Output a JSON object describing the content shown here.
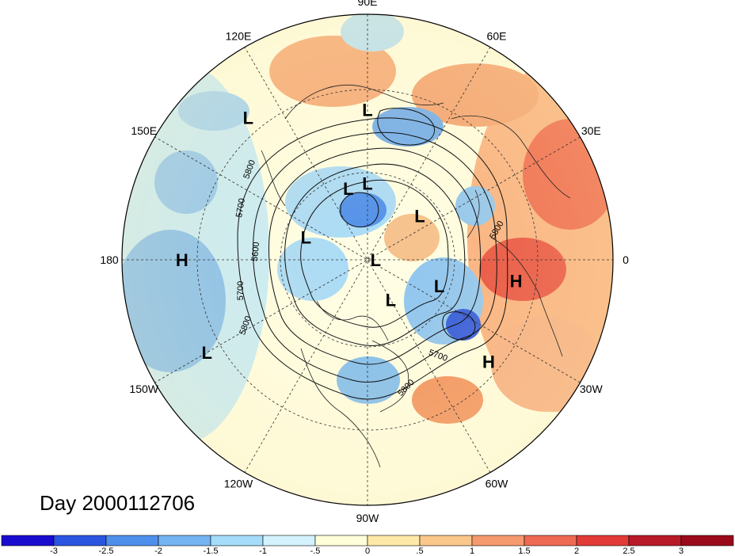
{
  "title": "Day 2000112706",
  "longitude_labels": [
    {
      "text": "90E",
      "lon": 90
    },
    {
      "text": "60E",
      "lon": 60
    },
    {
      "text": "30E",
      "lon": 30
    },
    {
      "text": "0",
      "lon": 0
    },
    {
      "text": "30W",
      "lon": -30
    },
    {
      "text": "60W",
      "lon": -60
    },
    {
      "text": "90W",
      "lon": -90
    },
    {
      "text": "120W",
      "lon": -120
    },
    {
      "text": "150W",
      "lon": -150
    },
    {
      "text": "180",
      "lon": 180
    },
    {
      "text": "150E",
      "lon": 150
    },
    {
      "text": "120E",
      "lon": 120
    }
  ],
  "pressure_centers": [
    {
      "type": "L",
      "lat": 35,
      "lon": 90
    },
    {
      "type": "L",
      "lat": 22,
      "lon": 130
    },
    {
      "type": "L",
      "lat": 63,
      "lon": 105
    },
    {
      "type": "L",
      "lat": 62,
      "lon": 90
    },
    {
      "type": "L",
      "lat": 65,
      "lon": 40
    },
    {
      "type": "L",
      "lat": 87,
      "lon": 0
    },
    {
      "type": "L",
      "lat": 66,
      "lon": 160
    },
    {
      "type": "L",
      "lat": 62,
      "lon": -20
    },
    {
      "type": "L",
      "lat": 73,
      "lon": -60
    },
    {
      "type": "L",
      "lat": 22,
      "lon": -150
    },
    {
      "type": "H",
      "lat": 22,
      "lon": 180
    },
    {
      "type": "H",
      "lat": 35,
      "lon": -8
    },
    {
      "type": "H",
      "lat": 32,
      "lon": -40
    }
  ],
  "contour_labels": [
    "5800",
    "5700",
    "5600",
    "5700",
    "5800",
    "5700",
    "5800",
    "5800"
  ],
  "colorbar": {
    "tick_labels": [
      "-3",
      "-2.5",
      "-2",
      "-1.5",
      "-1",
      "-.5",
      "0",
      ".5",
      "1",
      "1.5",
      "2",
      "2.5",
      "3"
    ],
    "colors": [
      "#1a0ccf",
      "#2a55e0",
      "#4f8fec",
      "#74b4f2",
      "#a4dcfa",
      "#d4f2fd",
      "#ffffd9",
      "#fde8a8",
      "#f9c88a",
      "#f59a6e",
      "#ef6a52",
      "#e23b38",
      "#b81a28",
      "#9a0a1a"
    ]
  }
}
